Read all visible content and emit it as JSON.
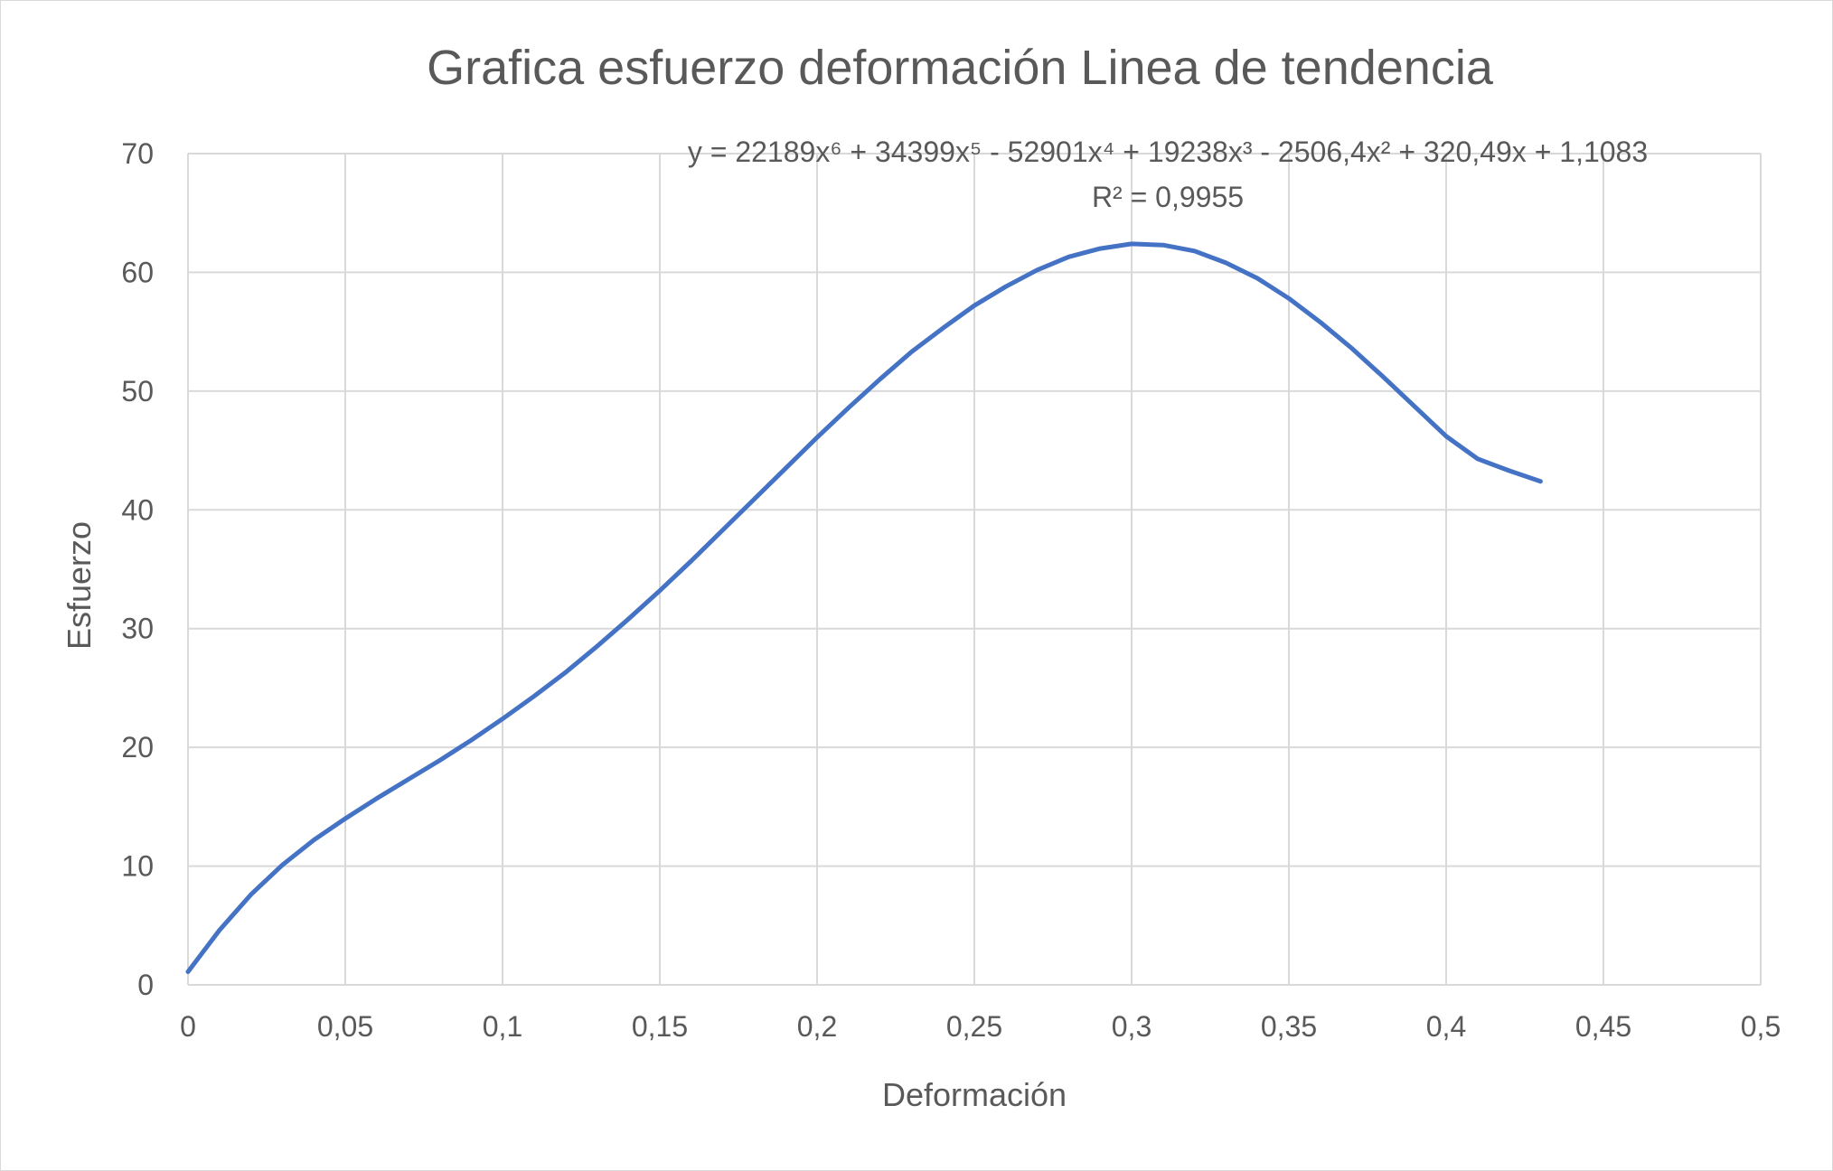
{
  "chart_data": {
    "type": "line",
    "title": "Grafica esfuerzo deformación Linea de tendencia",
    "xlabel": "Deformación",
    "ylabel": "Esfuerzo",
    "xlim": [
      0,
      0.5
    ],
    "ylim": [
      0,
      70
    ],
    "x_ticks": [
      "0",
      "0,05",
      "0,1",
      "0,15",
      "0,2",
      "0,25",
      "0,3",
      "0,35",
      "0,4",
      "0,45",
      "0,5"
    ],
    "y_ticks": [
      "0",
      "10",
      "20",
      "30",
      "40",
      "50",
      "60",
      "70"
    ],
    "grid": true,
    "legend": "none",
    "series_color": "#4472c4",
    "trendline": {
      "equation_text": "y = 22189x⁶ + 34399x⁵ - 52901x⁴ + 19238x³ - 2506,4x² + 320,49x + 1,1083",
      "r2_text": "R² = 0,9955"
    },
    "series": [
      {
        "x": [
          0,
          0.01,
          0.02,
          0.03,
          0.04,
          0.05,
          0.06,
          0.07,
          0.08,
          0.09,
          0.1,
          0.11,
          0.12,
          0.13,
          0.14,
          0.15,
          0.16,
          0.17,
          0.18,
          0.19,
          0.2,
          0.21,
          0.22,
          0.23,
          0.24,
          0.25,
          0.26,
          0.27,
          0.28,
          0.29,
          0.3,
          0.31,
          0.32,
          0.33,
          0.34,
          0.35,
          0.36,
          0.37,
          0.38,
          0.39,
          0.4,
          0.41,
          0.42,
          0.43
        ],
        "values": [
          1.1,
          4.6,
          7.6,
          10.1,
          12.2,
          14.0,
          15.7,
          17.3,
          18.9,
          20.6,
          22.4,
          24.3,
          26.3,
          28.5,
          30.8,
          33.2,
          35.7,
          38.3,
          40.9,
          43.5,
          46.1,
          48.6,
          51.0,
          53.3,
          55.3,
          57.2,
          58.8,
          60.2,
          61.3,
          62.0,
          62.4,
          62.3,
          61.8,
          60.8,
          59.5,
          57.8,
          55.8,
          53.6,
          51.2,
          48.7,
          46.2,
          44.3,
          43.3,
          42.4
        ]
      }
    ]
  }
}
